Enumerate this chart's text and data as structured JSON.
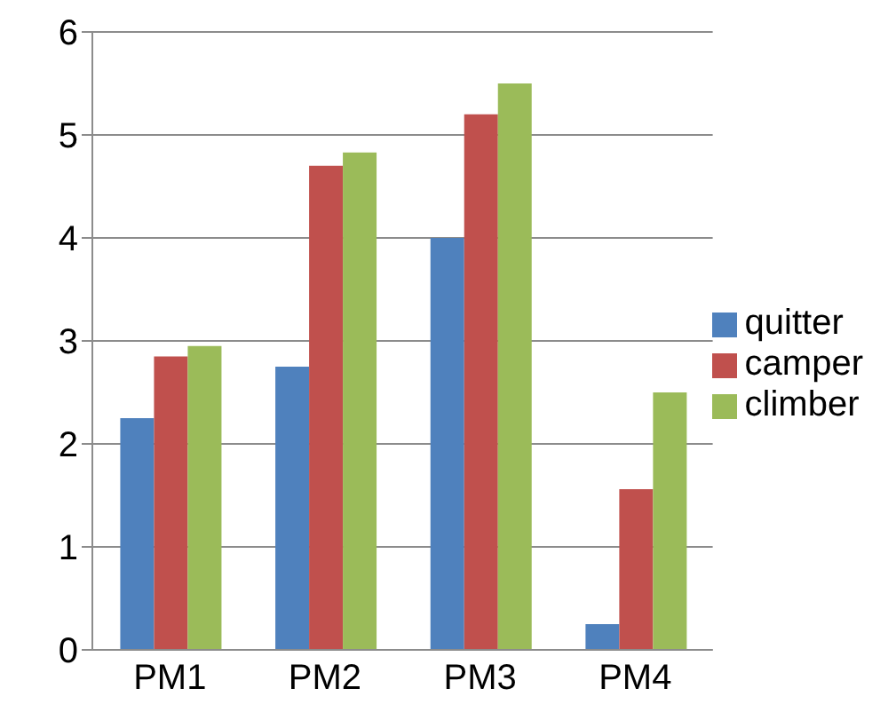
{
  "chart_data": {
    "type": "bar",
    "categories": [
      "PM1",
      "PM2",
      "PM3",
      "PM4"
    ],
    "series": [
      {
        "name": "quitter",
        "color": "#4f81bd",
        "values": [
          2.25,
          2.75,
          4,
          0.25
        ]
      },
      {
        "name": "camper",
        "color": "#c0504d",
        "values": [
          2.85,
          4.7,
          5.2,
          1.56
        ]
      },
      {
        "name": "climber",
        "color": "#9bbb59",
        "values": [
          2.95,
          4.83,
          5.5,
          2.5
        ]
      }
    ],
    "ylim": [
      0,
      6
    ],
    "yticks": [
      0,
      1,
      2,
      3,
      4,
      5,
      6
    ],
    "grid": "y",
    "legend": "right"
  }
}
